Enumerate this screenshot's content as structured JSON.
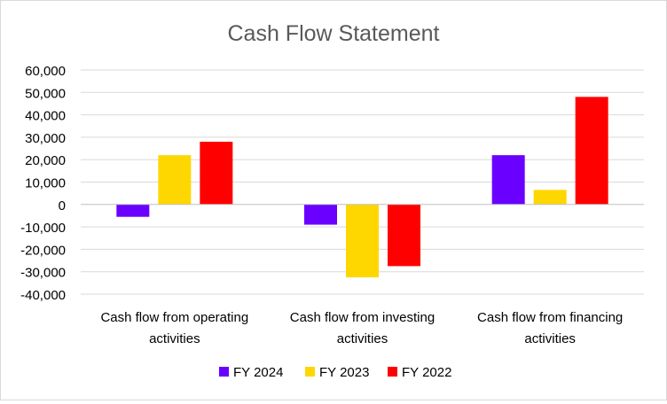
{
  "chart_data": {
    "type": "bar",
    "title": "Cash Flow Statement",
    "categories": [
      [
        "Cash flow from operating",
        "activities"
      ],
      [
        "Cash flow from investing",
        "activities"
      ],
      [
        "Cash flow from financing",
        "activities"
      ]
    ],
    "series": [
      {
        "name": "FY 2024",
        "color": "#6a00ff",
        "values": [
          -5500,
          -9000,
          22000
        ]
      },
      {
        "name": "FY 2023",
        "color": "#ffd700",
        "values": [
          22000,
          -32500,
          6500
        ]
      },
      {
        "name": "FY 2022",
        "color": "#ff0000",
        "values": [
          28000,
          -27500,
          48000
        ]
      }
    ],
    "ylim": [
      -40000,
      60000
    ],
    "y_ticks": [
      60000,
      50000,
      40000,
      30000,
      20000,
      10000,
      0,
      -10000,
      -20000,
      -30000,
      -40000
    ],
    "y_tick_labels": [
      "60,000",
      "50,000",
      "40,000",
      "30,000",
      "20,000",
      "10,000",
      "0",
      "-10,000",
      "-20,000",
      "-30,000",
      "-40,000"
    ],
    "grid": true,
    "legend_position": "bottom"
  }
}
